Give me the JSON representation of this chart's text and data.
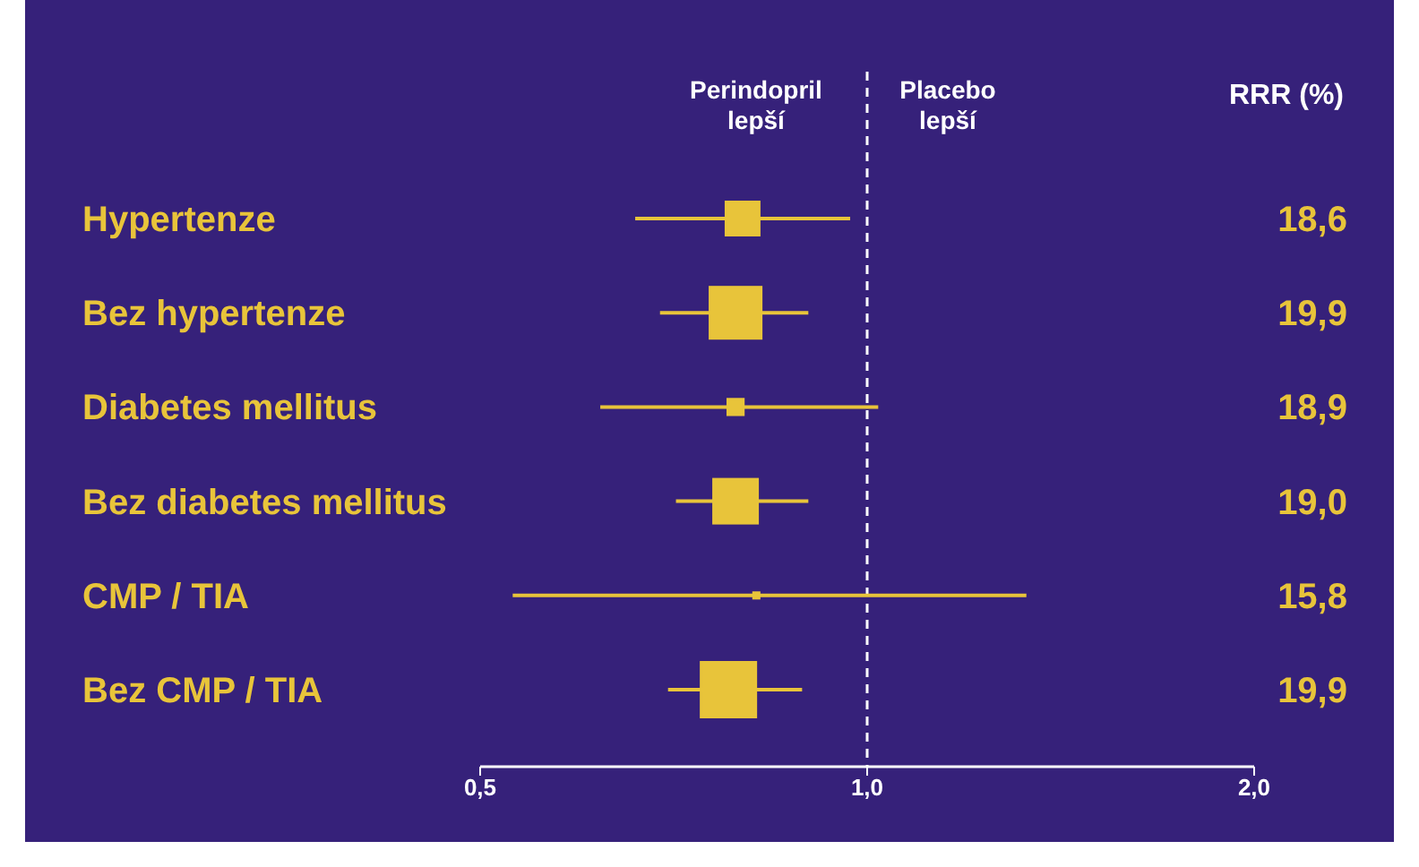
{
  "chart_data": {
    "type": "bubble",
    "orientation": "horizontal",
    "marker": "square",
    "categories": [
      "Hypertenze",
      "Bez hypertenze",
      "Diabetes mellitus",
      "Bez diabetes mellitus",
      "CMP / TIA",
      "Bez CMP / TIA"
    ],
    "values": [
      0.8,
      0.79,
      0.79,
      0.79,
      0.82,
      0.78
    ],
    "errors": [
      [
        0.66,
        0.97
      ],
      [
        0.69,
        0.9
      ],
      [
        0.62,
        1.02
      ],
      [
        0.71,
        0.9
      ],
      [
        0.53,
        1.33
      ],
      [
        0.7,
        0.89
      ]
    ],
    "sizes": [
      0.39,
      0.88,
      0.1,
      0.66,
      0.02,
      1
    ],
    "color": "#e8c43a",
    "xlim": [
      0.5,
      2.0
    ],
    "xticks": [
      {
        "value": 0.5,
        "label": "0,5"
      },
      {
        "value": 1.0,
        "label": "1,0"
      },
      {
        "value": 2.0,
        "label": "2,0"
      }
    ],
    "log": "x",
    "ref_lines": [
      {
        "axis": "x",
        "value": 1.0,
        "color": "#ffffff",
        "line_style": "dashed"
      }
    ],
    "annotations": [
      "Perindopril\nlepší",
      "Placebo\nlepší",
      "RRR (%)",
      "18,6",
      "19,9",
      "18,9",
      "19,0",
      "15,8",
      "19,9"
    ]
  }
}
